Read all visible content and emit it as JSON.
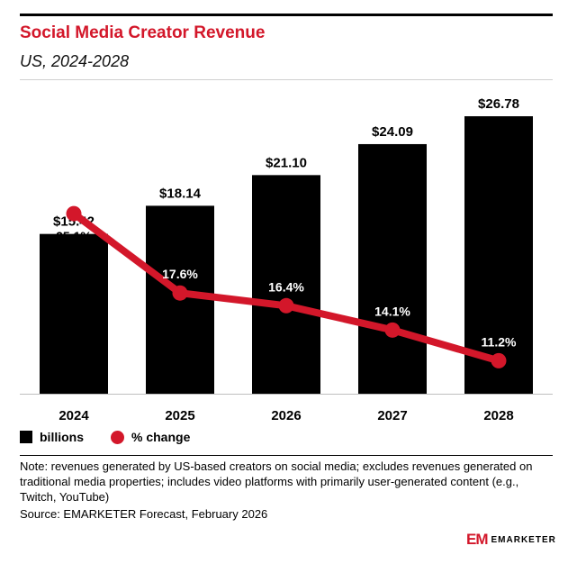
{
  "header": {
    "title": "Social Media Creator Revenue",
    "subtitle": "US, 2024-2028"
  },
  "chart_data": {
    "type": "bar",
    "categories": [
      "2024",
      "2025",
      "2026",
      "2027",
      "2028"
    ],
    "series": [
      {
        "name": "billions",
        "type": "bar",
        "values": [
          15.42,
          18.14,
          21.1,
          24.09,
          26.78
        ],
        "labels": [
          "$15.42",
          "$18.14",
          "$21.10",
          "$24.09",
          "$26.78"
        ],
        "color": "#000000"
      },
      {
        "name": "% change",
        "type": "line",
        "values": [
          25.1,
          17.6,
          16.4,
          14.1,
          11.2
        ],
        "labels": [
          "25.1%",
          "17.6%",
          "16.4%",
          "14.1%",
          "11.2%"
        ],
        "color": "#d3172a"
      }
    ],
    "bar_ylim": [
      0,
      30
    ],
    "line_ylim": [
      0,
      40
    ],
    "grid": false,
    "legend": "bottom-left"
  },
  "legend": {
    "bar_label": "billions",
    "line_label": "% change"
  },
  "footer": {
    "note": "Note: revenues generated by US-based creators on social media; excludes revenues generated on traditional media properties; includes video platforms with primarily user-generated content (e.g., Twitch, YouTube)",
    "source": "Source: EMARKETER Forecast, February 2026",
    "logo_mark": "EM",
    "logo_text": "EMARKETER"
  },
  "colors": {
    "accent": "#d3172a",
    "bar": "#000000"
  }
}
